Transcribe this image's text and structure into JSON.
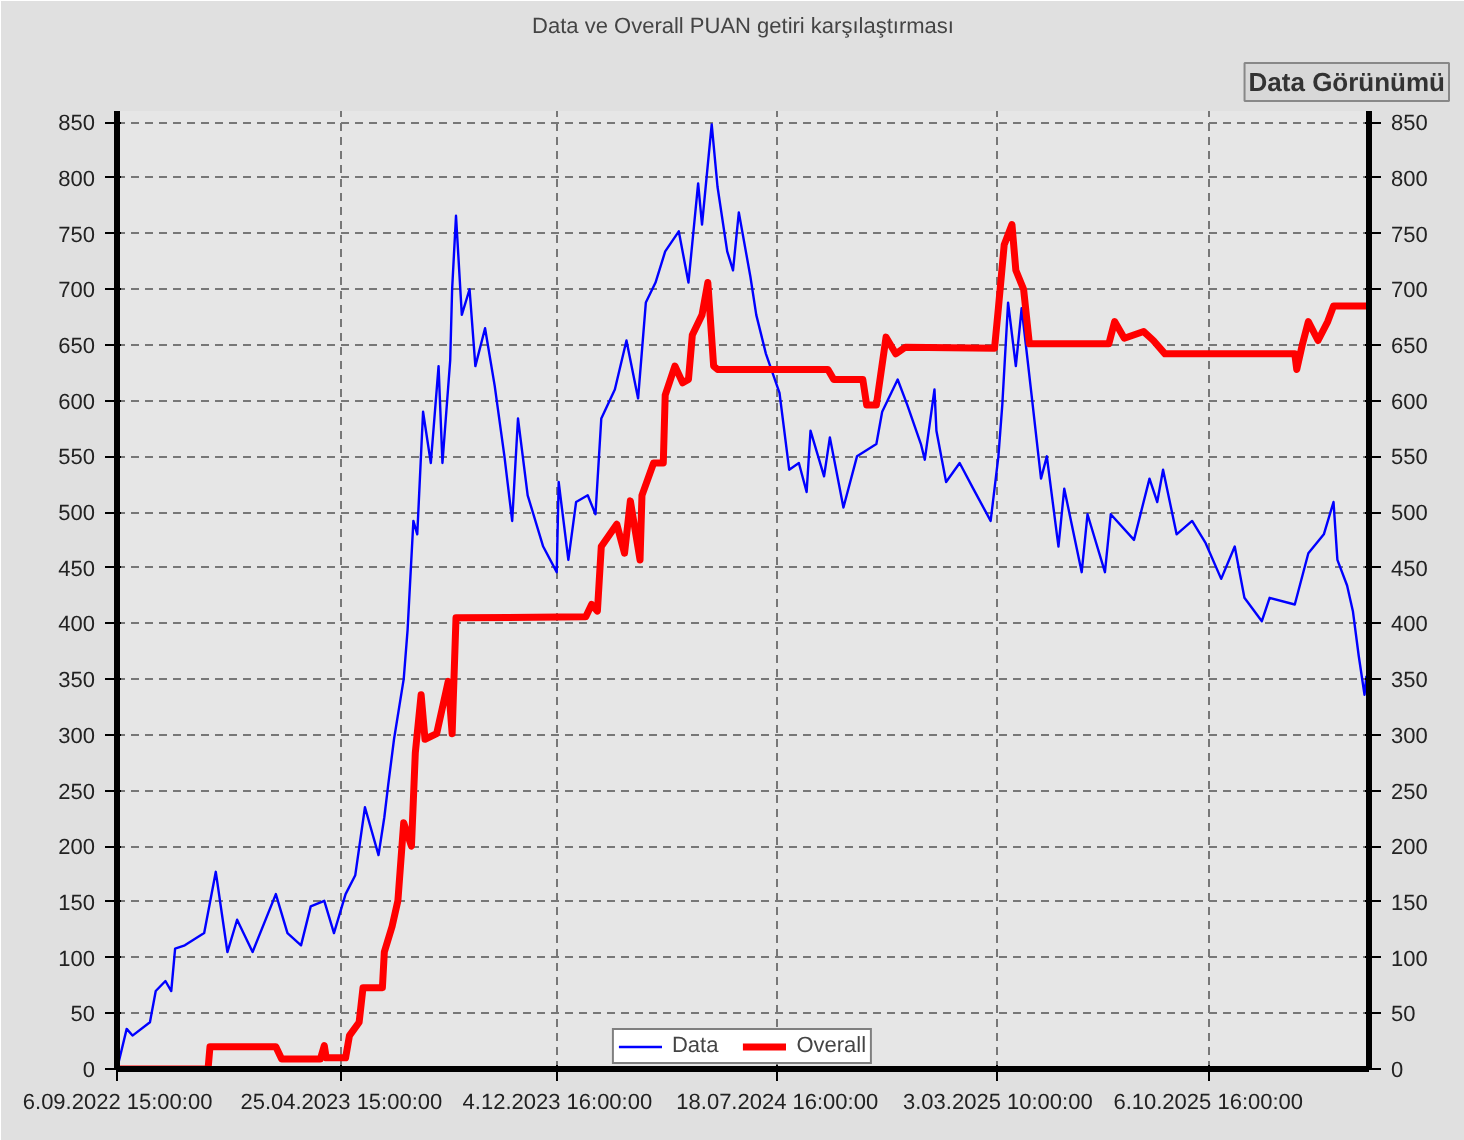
{
  "chart_data": {
    "type": "line",
    "title": "Data ve Overall PUAN getiri karşılaştırması",
    "annotations": [
      "Data Görünümü"
    ],
    "xlim": [
      "2022-09-06",
      "2026-03-21T15:00"
    ],
    "xticks": [
      {
        "value": "2022-09-06T15:00",
        "label": "6.09.2022 15:00:00"
      },
      {
        "value": "2023-04-25T15:00",
        "label": "25.04.2023 15:00:00"
      },
      {
        "value": "2023-12-04T16:00",
        "label": "4.12.2023 16:00:00"
      },
      {
        "value": "2024-07-18T16:00",
        "label": "18.07.2024 16:00:00"
      },
      {
        "value": "2025-03-03T10:00",
        "label": "3.03.2025 10:00:00"
      },
      {
        "value": "2025-10-06T16:00",
        "label": "6.10.2025 16:00:00"
      }
    ],
    "ylim": [
      0,
      860
    ],
    "yticks": [
      0,
      50,
      100,
      150,
      200,
      250,
      300,
      350,
      400,
      450,
      500,
      550,
      600,
      650,
      700,
      750,
      800,
      850
    ],
    "y2lim": [
      0,
      860
    ],
    "y2ticks": [
      0,
      50,
      100,
      150,
      200,
      250,
      300,
      350,
      400,
      450,
      500,
      550,
      600,
      650,
      700,
      750,
      800,
      850
    ],
    "grid": true,
    "legend": "bottom",
    "line_style": "solid",
    "series": [
      {
        "name": "Data",
        "color": "#0000ff",
        "x": [
          "2022-09-06",
          "2022-09-16",
          "2022-09-22",
          "2022-10-10",
          "2022-10-16",
          "2022-10-26",
          "2022-11-01",
          "2022-11-05",
          "2022-11-15",
          "2022-12-05",
          "2022-12-17",
          "2022-12-29",
          "2023-01-08",
          "2023-01-24",
          "2023-02-17",
          "2023-03-01",
          "2023-03-15",
          "2023-03-25",
          "2023-04-08",
          "2023-04-18",
          "2023-04-30",
          "2023-05-10",
          "2023-05-20",
          "2023-06-03",
          "2023-06-09",
          "2023-06-13",
          "2023-06-19",
          "2023-06-29",
          "2023-07-03",
          "2023-07-09",
          "2023-07-13",
          "2023-07-19",
          "2023-07-27",
          "2023-08-04",
          "2023-08-08",
          "2023-08-16",
          "2023-08-18",
          "2023-08-22",
          "2023-08-28",
          "2023-09-05",
          "2023-09-11",
          "2023-09-21",
          "2023-10-01",
          "2023-10-11",
          "2023-10-19",
          "2023-10-25",
          "2023-11-04",
          "2023-11-20",
          "2023-12-04",
          "2023-12-06",
          "2023-12-16",
          "2023-12-24",
          "2024-01-05",
          "2024-01-13",
          "2024-01-19",
          "2024-02-02",
          "2024-02-14",
          "2024-02-26",
          "2024-03-05",
          "2024-03-15",
          "2024-03-25",
          "2024-04-08",
          "2024-04-18",
          "2024-04-28",
          "2024-05-02",
          "2024-05-12",
          "2024-05-18",
          "2024-05-28",
          "2024-06-03",
          "2024-06-09",
          "2024-06-21",
          "2024-06-27",
          "2024-07-07",
          "2024-07-21",
          "2024-07-31",
          "2024-08-10",
          "2024-08-18",
          "2024-08-22",
          "2024-09-05",
          "2024-09-11",
          "2024-09-25",
          "2024-10-09",
          "2024-10-29",
          "2024-11-04",
          "2024-11-20",
          "2024-11-30",
          "2024-12-14",
          "2024-12-18",
          "2024-12-28",
          "2024-12-30",
          "2025-01-09",
          "2025-01-23",
          "2025-02-06",
          "2025-02-24",
          "2025-03-04",
          "2025-03-08",
          "2025-03-14",
          "2025-03-22",
          "2025-03-28",
          "2025-04-07",
          "2025-04-17",
          "2025-04-23",
          "2025-05-05",
          "2025-05-11",
          "2025-05-29",
          "2025-06-04",
          "2025-06-22",
          "2025-06-28",
          "2025-07-22",
          "2025-08-07",
          "2025-08-15",
          "2025-08-21",
          "2025-09-04",
          "2025-09-20",
          "2025-10-04",
          "2025-10-20",
          "2025-11-03",
          "2025-11-13",
          "2025-12-01",
          "2025-12-09",
          "2026-01-04",
          "2026-01-18",
          "2026-02-03",
          "2026-02-13",
          "2026-02-17",
          "2026-02-27",
          "2026-03-05",
          "2026-03-11",
          "2026-03-17",
          "2026-03-19"
        ],
        "values": [
          0,
          36,
          30,
          42,
          70,
          79,
          70,
          108,
          111,
          122,
          177,
          105,
          134,
          105,
          157,
          122,
          111,
          146,
          151,
          122,
          157,
          174,
          235,
          192,
          226,
          255,
          296,
          350,
          394,
          492,
          480,
          590,
          544,
          631,
          544,
          636,
          700,
          766,
          677,
          700,
          631,
          665,
          613,
          550,
          492,
          584,
          515,
          469,
          446,
          527,
          457,
          509,
          515,
          498,
          584,
          610,
          654,
          602,
          688,
          706,
          734,
          752,
          706,
          795,
          758,
          848,
          792,
          734,
          717,
          769,
          711,
          677,
          642,
          607,
          538,
          544,
          518,
          573,
          532,
          567,
          504,
          550,
          561,
          590,
          619,
          596,
          561,
          547,
          610,
          573,
          527,
          544,
          521,
          492,
          550,
          596,
          688,
          631,
          683,
          607,
          530,
          550,
          469,
          521,
          446,
          498,
          446,
          498,
          475,
          530,
          509,
          538,
          480,
          492,
          472,
          440,
          469,
          423,
          402,
          423,
          417,
          463,
          480,
          509,
          457,
          434,
          411,
          371,
          336,
          353
        ]
      },
      {
        "name": "Overall",
        "color": "#ff0000",
        "x": [
          "2022-09-06",
          "2022-12-09",
          "2022-12-11",
          "2023-02-17",
          "2023-02-23",
          "2023-04-04",
          "2023-04-08",
          "2023-04-10",
          "2023-04-30",
          "2023-05-04",
          "2023-05-14",
          "2023-05-18",
          "2023-06-07",
          "2023-06-09",
          "2023-06-17",
          "2023-06-23",
          "2023-06-29",
          "2023-07-07",
          "2023-07-11",
          "2023-07-17",
          "2023-07-21",
          "2023-08-02",
          "2023-08-14",
          "2023-08-18",
          "2023-08-22",
          "2024-01-03",
          "2024-01-09",
          "2024-01-15",
          "2024-01-19",
          "2024-02-04",
          "2024-02-12",
          "2024-02-18",
          "2024-02-28",
          "2024-03-01",
          "2024-03-13",
          "2024-03-23",
          "2024-03-25",
          "2024-04-04",
          "2024-04-12",
          "2024-04-18",
          "2024-04-22",
          "2024-05-02",
          "2024-05-08",
          "2024-05-14",
          "2024-05-18",
          "2024-09-09",
          "2024-09-15",
          "2024-10-15",
          "2024-10-19",
          "2024-10-29",
          "2024-11-08",
          "2024-11-18",
          "2024-11-28",
          "2025-02-28",
          "2025-03-04",
          "2025-03-10",
          "2025-03-18",
          "2025-03-22",
          "2025-03-30",
          "2025-04-05",
          "2025-06-26",
          "2025-07-02",
          "2025-07-12",
          "2025-08-01",
          "2025-08-11",
          "2025-08-23",
          "2026-01-04",
          "2026-01-06",
          "2026-01-12",
          "2026-01-18",
          "2026-01-28",
          "2026-02-07",
          "2026-02-13",
          "2026-03-21"
        ],
        "values": [
          0,
          0,
          20,
          20,
          9,
          9,
          21,
          10,
          10,
          30,
          42,
          73,
          73,
          105,
          128,
          151,
          221,
          200,
          284,
          336,
          296,
          301,
          348,
          301,
          405,
          406,
          417,
          411,
          469,
          489,
          463,
          510,
          457,
          515,
          544,
          544,
          605,
          631,
          616,
          619,
          659,
          677,
          706,
          631,
          628,
          628,
          619,
          619,
          596,
          596,
          657,
          642,
          648,
          647,
          683,
          740,
          758,
          717,
          700,
          651,
          651,
          671,
          656,
          662,
          654,
          642,
          642,
          628,
          651,
          671,
          654,
          671,
          685,
          685
        ]
      }
    ]
  }
}
